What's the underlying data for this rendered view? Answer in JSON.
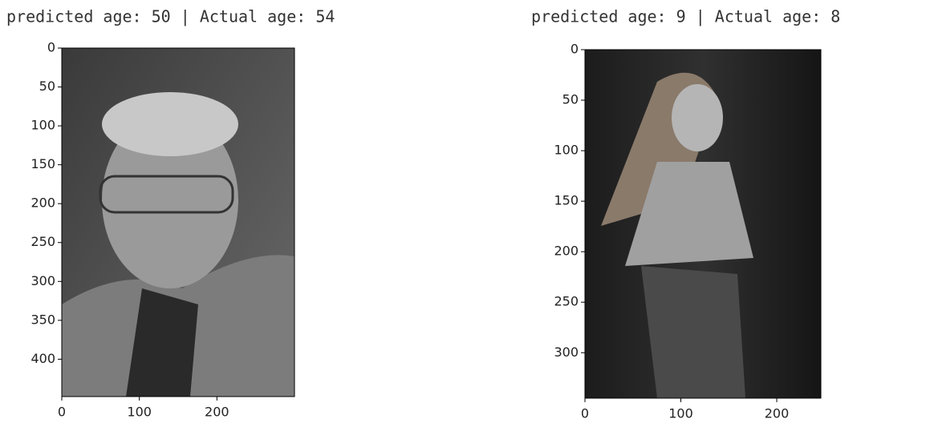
{
  "chart_data": [
    {
      "type": "image",
      "title": "predicted age: 50 | Actual age: 54",
      "xlim": [
        0,
        300
      ],
      "ylim": [
        448,
        0
      ],
      "xticks": [
        0,
        100,
        200
      ],
      "yticks": [
        0,
        50,
        100,
        150,
        200,
        250,
        300,
        350,
        400
      ]
    },
    {
      "type": "image",
      "title": "predicted age: 9 | Actual age: 8",
      "xlim": [
        0,
        246
      ],
      "ylim": [
        345,
        0
      ],
      "xticks": [
        0,
        100,
        200
      ],
      "yticks": [
        0,
        50,
        100,
        150,
        200,
        250,
        300
      ]
    }
  ]
}
